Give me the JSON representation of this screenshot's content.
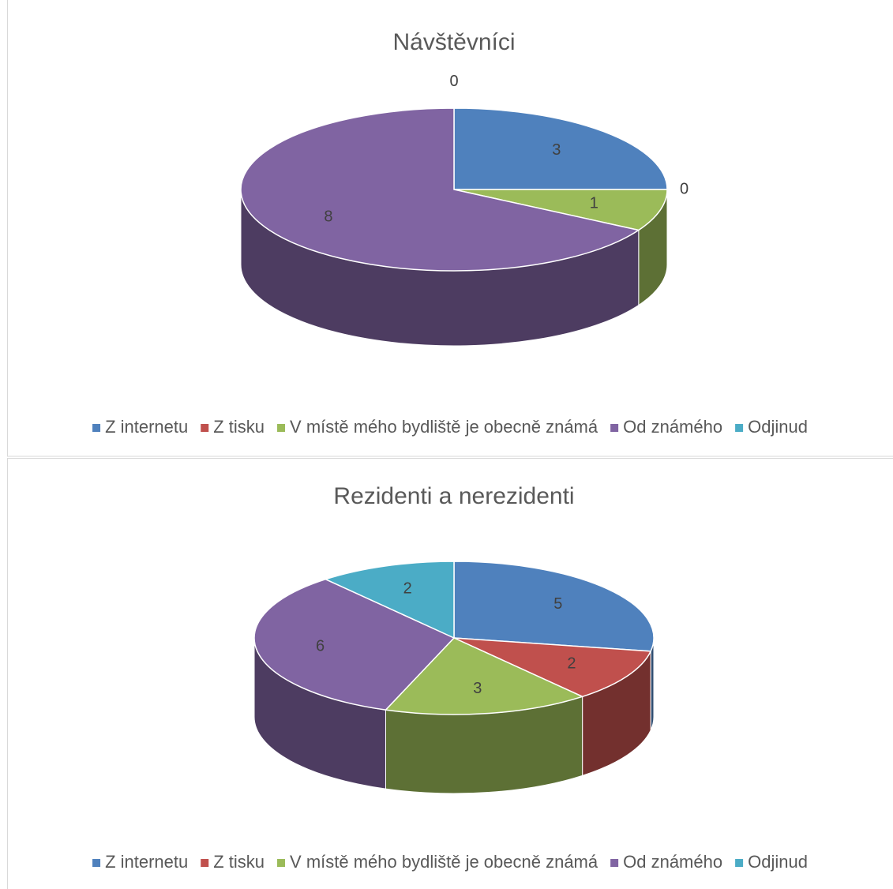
{
  "chart_data": [
    {
      "type": "pie",
      "title": "Návštěvníci",
      "categories": [
        "Z internetu",
        "Z tisku",
        "V místě mého bydliště je obecně známá",
        "Od známého",
        "Odjinud"
      ],
      "values": [
        3,
        0,
        1,
        8,
        0
      ],
      "colors": [
        "#4f81bd",
        "#c0504d",
        "#9bbb59",
        "#8064a2",
        "#4bacc6"
      ],
      "legend": "bottom"
    },
    {
      "type": "pie",
      "title": "Rezidenti a nerezidenti",
      "categories": [
        "Z internetu",
        "Z tisku",
        "V místě mého bydliště je obecně známá",
        "Od známého",
        "Odjinud"
      ],
      "values": [
        5,
        2,
        3,
        6,
        2
      ],
      "colors": [
        "#4f81bd",
        "#c0504d",
        "#9bbb59",
        "#8064a2",
        "#4bacc6"
      ],
      "legend": "bottom"
    }
  ]
}
